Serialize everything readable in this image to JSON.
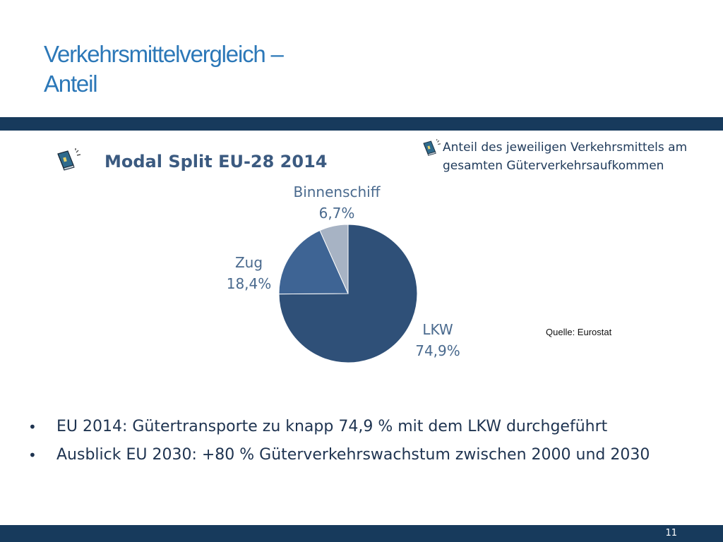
{
  "slide": {
    "title_line1": "Verkehrsmittelvergleich –",
    "title_line2": "Anteil",
    "page_number": "11"
  },
  "chart_heading": "Modal Split EU-28 2014",
  "note": {
    "line1": "Anteil  des jeweiligen Verkehrsmittels am",
    "line2": "gesamten Güterverkehrsaufkommen"
  },
  "source": "Quelle: Eurostat",
  "icons": {
    "heading_icon": "book-icon",
    "note_icon": "book-icon"
  },
  "colors": {
    "band": "#173a5c",
    "title": "#2c78b8",
    "slice_lkw": "#2f5078",
    "slice_zug": "#3e6494",
    "slice_binnenschiff": "#a7b3c4"
  },
  "chart_data": {
    "type": "pie",
    "title": "",
    "slices": [
      {
        "label": "LKW",
        "value": 74.9,
        "value_label": "74,9%"
      },
      {
        "label": "Zug",
        "value": 18.4,
        "value_label": "18,4%"
      },
      {
        "label": "Binnenschiff",
        "value": 6.7,
        "value_label": "6,7%"
      }
    ]
  },
  "bullets": [
    "EU 2014: Gütertransporte zu knapp 74,9 % mit dem LKW durchgeführt",
    "Ausblick EU 2030:  +80 % Güterverkehrswachstum zwischen 2000 und 2030"
  ]
}
